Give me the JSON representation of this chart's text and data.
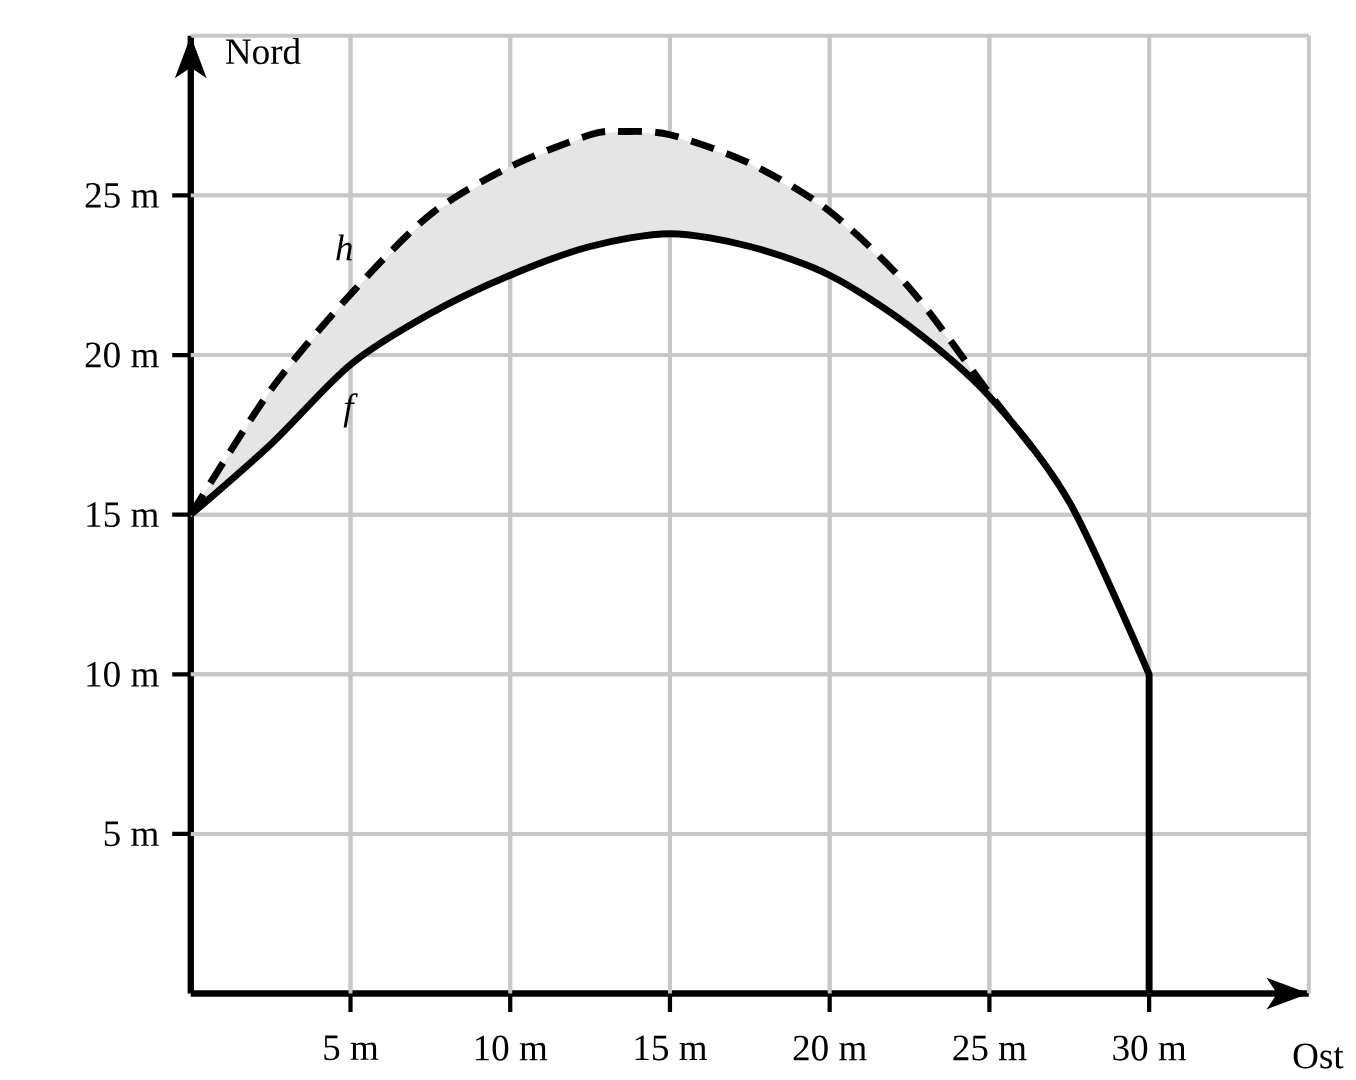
{
  "chart_data": {
    "type": "line",
    "xlabel": "Ost",
    "ylabel": "Nord",
    "xlim": [
      0,
      35
    ],
    "ylim": [
      0,
      30
    ],
    "xticks": [
      {
        "value": 5,
        "label": "5 m"
      },
      {
        "value": 10,
        "label": "10 m"
      },
      {
        "value": 15,
        "label": "15 m"
      },
      {
        "value": 20,
        "label": "20 m"
      },
      {
        "value": 25,
        "label": "25 m"
      },
      {
        "value": 30,
        "label": "30 m"
      }
    ],
    "yticks": [
      {
        "value": 5,
        "label": "5 m"
      },
      {
        "value": 10,
        "label": "10 m"
      },
      {
        "value": 15,
        "label": "15 m"
      },
      {
        "value": 20,
        "label": "20 m"
      },
      {
        "value": 25,
        "label": "25 m"
      }
    ],
    "grid": true,
    "series": [
      {
        "name": "h",
        "color": "#000000",
        "line_style": "dashed",
        "x": [
          0,
          2.5,
          5,
          7.5,
          10,
          12.5,
          13.5,
          15,
          17.5,
          20,
          22.5,
          25,
          26.5
        ],
        "values": [
          15,
          18.9,
          21.9,
          24.4,
          25.9,
          26.9,
          27.0,
          26.9,
          26.0,
          24.5,
          22.1,
          18.8,
          16.9
        ],
        "lower": [
          15,
          17.2,
          19.7,
          21.3,
          22.5,
          23.4,
          23.6,
          23.8,
          23.4,
          22.5,
          20.9,
          18.7,
          16.9
        ],
        "upper": [
          15,
          18.9,
          21.9,
          24.4,
          25.9,
          26.9,
          27.0,
          26.9,
          26.0,
          24.5,
          22.1,
          18.8,
          16.9
        ]
      },
      {
        "name": "f",
        "color": "#000000",
        "line_style": "solid",
        "x": [
          0,
          2.5,
          5,
          7.5,
          10,
          12.5,
          15,
          17.5,
          20,
          22.5,
          25,
          27.5,
          30,
          30
        ],
        "values": [
          15,
          17.2,
          19.7,
          21.3,
          22.5,
          23.4,
          23.8,
          23.4,
          22.5,
          20.9,
          18.7,
          15.4,
          10,
          0
        ]
      }
    ]
  }
}
